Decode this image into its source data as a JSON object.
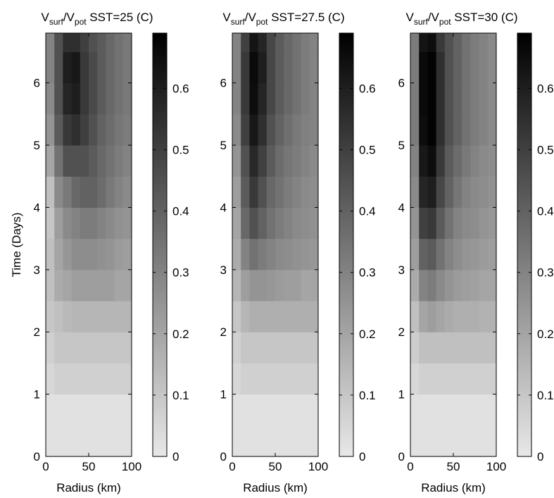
{
  "chart_data": [
    {
      "type": "contour",
      "title": [
        "V",
        "surf",
        "/V",
        "pot",
        " SST=25 (C)"
      ],
      "xlabel": "Radius (km)",
      "ylabel": "Time (Days)",
      "xlim": [
        0,
        100
      ],
      "xticks": [
        0,
        50,
        100
      ],
      "ylim": [
        0,
        6.8
      ],
      "yticks": [
        0,
        1,
        2,
        3,
        4,
        5,
        6
      ],
      "clim": [
        0,
        0.69
      ],
      "cticks": [
        0,
        0.1,
        0.2,
        0.3,
        0.4,
        0.5,
        0.6
      ],
      "colormap": [
        "#e8e8e8",
        "#000000"
      ],
      "x_edges": [
        0,
        10,
        20,
        30,
        40,
        50,
        60,
        70,
        80,
        90,
        100
      ],
      "y_edges": [
        0,
        0.5,
        1,
        1.5,
        2,
        2.5,
        3,
        3.5,
        4,
        4.5,
        5,
        5.5,
        6,
        6.5,
        6.8
      ],
      "z": [
        [
          0.02,
          0.02,
          0.02,
          0.02,
          0.02,
          0.02,
          0.02,
          0.02,
          0.02,
          0.02
        ],
        [
          0.02,
          0.02,
          0.02,
          0.02,
          0.02,
          0.02,
          0.02,
          0.02,
          0.02,
          0.02
        ],
        [
          0.05,
          0.07,
          0.07,
          0.07,
          0.07,
          0.07,
          0.07,
          0.07,
          0.07,
          0.07
        ],
        [
          0.07,
          0.1,
          0.1,
          0.1,
          0.1,
          0.1,
          0.1,
          0.1,
          0.1,
          0.1
        ],
        [
          0.1,
          0.12,
          0.14,
          0.15,
          0.15,
          0.15,
          0.15,
          0.15,
          0.15,
          0.15
        ],
        [
          0.12,
          0.18,
          0.2,
          0.22,
          0.22,
          0.22,
          0.22,
          0.22,
          0.2,
          0.2
        ],
        [
          0.12,
          0.2,
          0.24,
          0.27,
          0.27,
          0.27,
          0.26,
          0.25,
          0.23,
          0.22
        ],
        [
          0.1,
          0.22,
          0.28,
          0.3,
          0.32,
          0.32,
          0.3,
          0.28,
          0.26,
          0.25
        ],
        [
          0.12,
          0.28,
          0.33,
          0.38,
          0.4,
          0.4,
          0.37,
          0.33,
          0.3,
          0.28
        ],
        [
          0.2,
          0.35,
          0.45,
          0.45,
          0.45,
          0.42,
          0.38,
          0.35,
          0.32,
          0.3
        ],
        [
          0.25,
          0.42,
          0.52,
          0.55,
          0.5,
          0.45,
          0.4,
          0.37,
          0.34,
          0.32
        ],
        [
          0.28,
          0.45,
          0.58,
          0.6,
          0.52,
          0.47,
          0.42,
          0.38,
          0.35,
          0.33
        ],
        [
          0.3,
          0.45,
          0.6,
          0.62,
          0.52,
          0.47,
          0.42,
          0.38,
          0.35,
          0.33
        ],
        [
          0.3,
          0.45,
          0.55,
          0.55,
          0.5,
          0.45,
          0.42,
          0.38,
          0.35,
          0.33
        ]
      ]
    },
    {
      "type": "contour",
      "title": [
        "V",
        "surf",
        "/V",
        "pot",
        " SST=27.5 (C)"
      ],
      "xlabel": "Radius (km)",
      "xlim": [
        0,
        100
      ],
      "xticks": [
        0,
        50,
        100
      ],
      "ylim": [
        0,
        6.8
      ],
      "yticks": [
        0,
        1,
        2,
        3,
        4,
        5,
        6
      ],
      "clim": [
        0,
        0.69
      ],
      "cticks": [
        0,
        0.1,
        0.2,
        0.3,
        0.4,
        0.5,
        0.6
      ],
      "colormap": [
        "#e8e8e8",
        "#000000"
      ],
      "x_edges": [
        0,
        10,
        20,
        30,
        40,
        50,
        60,
        70,
        80,
        90,
        100
      ],
      "y_edges": [
        0,
        0.5,
        1,
        1.5,
        2,
        2.5,
        3,
        3.5,
        4,
        4.5,
        5,
        5.5,
        6,
        6.5,
        6.8
      ],
      "z": [
        [
          0.02,
          0.02,
          0.02,
          0.02,
          0.02,
          0.02,
          0.02,
          0.02,
          0.02,
          0.02
        ],
        [
          0.02,
          0.02,
          0.02,
          0.02,
          0.02,
          0.02,
          0.02,
          0.02,
          0.02,
          0.02
        ],
        [
          0.05,
          0.07,
          0.07,
          0.07,
          0.07,
          0.07,
          0.07,
          0.07,
          0.07,
          0.07
        ],
        [
          0.07,
          0.1,
          0.1,
          0.1,
          0.1,
          0.1,
          0.1,
          0.1,
          0.1,
          0.1
        ],
        [
          0.1,
          0.15,
          0.17,
          0.17,
          0.17,
          0.17,
          0.17,
          0.17,
          0.17,
          0.17
        ],
        [
          0.15,
          0.22,
          0.25,
          0.25,
          0.24,
          0.23,
          0.22,
          0.22,
          0.2,
          0.2
        ],
        [
          0.18,
          0.3,
          0.35,
          0.32,
          0.3,
          0.28,
          0.27,
          0.26,
          0.25,
          0.24
        ],
        [
          0.2,
          0.38,
          0.45,
          0.4,
          0.35,
          0.32,
          0.3,
          0.28,
          0.27,
          0.26
        ],
        [
          0.22,
          0.42,
          0.52,
          0.45,
          0.38,
          0.35,
          0.32,
          0.3,
          0.28,
          0.27
        ],
        [
          0.25,
          0.45,
          0.57,
          0.5,
          0.42,
          0.37,
          0.34,
          0.32,
          0.3,
          0.28
        ],
        [
          0.28,
          0.5,
          0.62,
          0.55,
          0.45,
          0.4,
          0.36,
          0.33,
          0.31,
          0.3
        ],
        [
          0.3,
          0.52,
          0.65,
          0.58,
          0.48,
          0.42,
          0.38,
          0.35,
          0.32,
          0.3
        ],
        [
          0.3,
          0.52,
          0.66,
          0.6,
          0.48,
          0.42,
          0.38,
          0.35,
          0.32,
          0.3
        ],
        [
          0.3,
          0.5,
          0.63,
          0.58,
          0.48,
          0.42,
          0.38,
          0.35,
          0.32,
          0.3
        ]
      ]
    },
    {
      "type": "contour",
      "title": [
        "V",
        "surf",
        "/V",
        "pot",
        " SST=30 (C)"
      ],
      "xlabel": "Radius (km)",
      "xlim": [
        0,
        100
      ],
      "xticks": [
        0,
        50,
        100
      ],
      "ylim": [
        0,
        6.8
      ],
      "yticks": [
        0,
        1,
        2,
        3,
        4,
        5,
        6
      ],
      "clim": [
        0,
        0.69
      ],
      "cticks": [
        0,
        0.1,
        0.2,
        0.3,
        0.4,
        0.5,
        0.6
      ],
      "colormap": [
        "#e8e8e8",
        "#000000"
      ],
      "x_edges": [
        0,
        10,
        20,
        30,
        40,
        50,
        60,
        70,
        80,
        90,
        100
      ],
      "y_edges": [
        0,
        0.5,
        1,
        1.5,
        2,
        2.5,
        3,
        3.5,
        4,
        4.5,
        5,
        5.5,
        6,
        6.5,
        6.8
      ],
      "z": [
        [
          0.02,
          0.02,
          0.02,
          0.02,
          0.02,
          0.02,
          0.02,
          0.02,
          0.02,
          0.02
        ],
        [
          0.02,
          0.02,
          0.02,
          0.02,
          0.02,
          0.02,
          0.02,
          0.02,
          0.02,
          0.02
        ],
        [
          0.05,
          0.07,
          0.07,
          0.07,
          0.07,
          0.07,
          0.07,
          0.07,
          0.07,
          0.07
        ],
        [
          0.08,
          0.12,
          0.12,
          0.12,
          0.12,
          0.12,
          0.12,
          0.12,
          0.12,
          0.12
        ],
        [
          0.12,
          0.2,
          0.22,
          0.2,
          0.18,
          0.17,
          0.17,
          0.17,
          0.16,
          0.16
        ],
        [
          0.18,
          0.3,
          0.32,
          0.28,
          0.25,
          0.23,
          0.22,
          0.21,
          0.2,
          0.2
        ],
        [
          0.22,
          0.4,
          0.42,
          0.35,
          0.3,
          0.27,
          0.25,
          0.24,
          0.23,
          0.22
        ],
        [
          0.25,
          0.5,
          0.52,
          0.42,
          0.35,
          0.3,
          0.28,
          0.27,
          0.25,
          0.24
        ],
        [
          0.28,
          0.58,
          0.6,
          0.48,
          0.4,
          0.34,
          0.3,
          0.28,
          0.27,
          0.26
        ],
        [
          0.3,
          0.62,
          0.65,
          0.52,
          0.42,
          0.37,
          0.33,
          0.3,
          0.28,
          0.27
        ],
        [
          0.32,
          0.65,
          0.68,
          0.55,
          0.45,
          0.4,
          0.35,
          0.32,
          0.3,
          0.28
        ],
        [
          0.32,
          0.66,
          0.68,
          0.55,
          0.45,
          0.4,
          0.35,
          0.32,
          0.3,
          0.28
        ],
        [
          0.32,
          0.66,
          0.68,
          0.55,
          0.45,
          0.4,
          0.35,
          0.32,
          0.3,
          0.28
        ],
        [
          0.32,
          0.63,
          0.65,
          0.52,
          0.45,
          0.4,
          0.35,
          0.32,
          0.3,
          0.28
        ]
      ]
    }
  ]
}
